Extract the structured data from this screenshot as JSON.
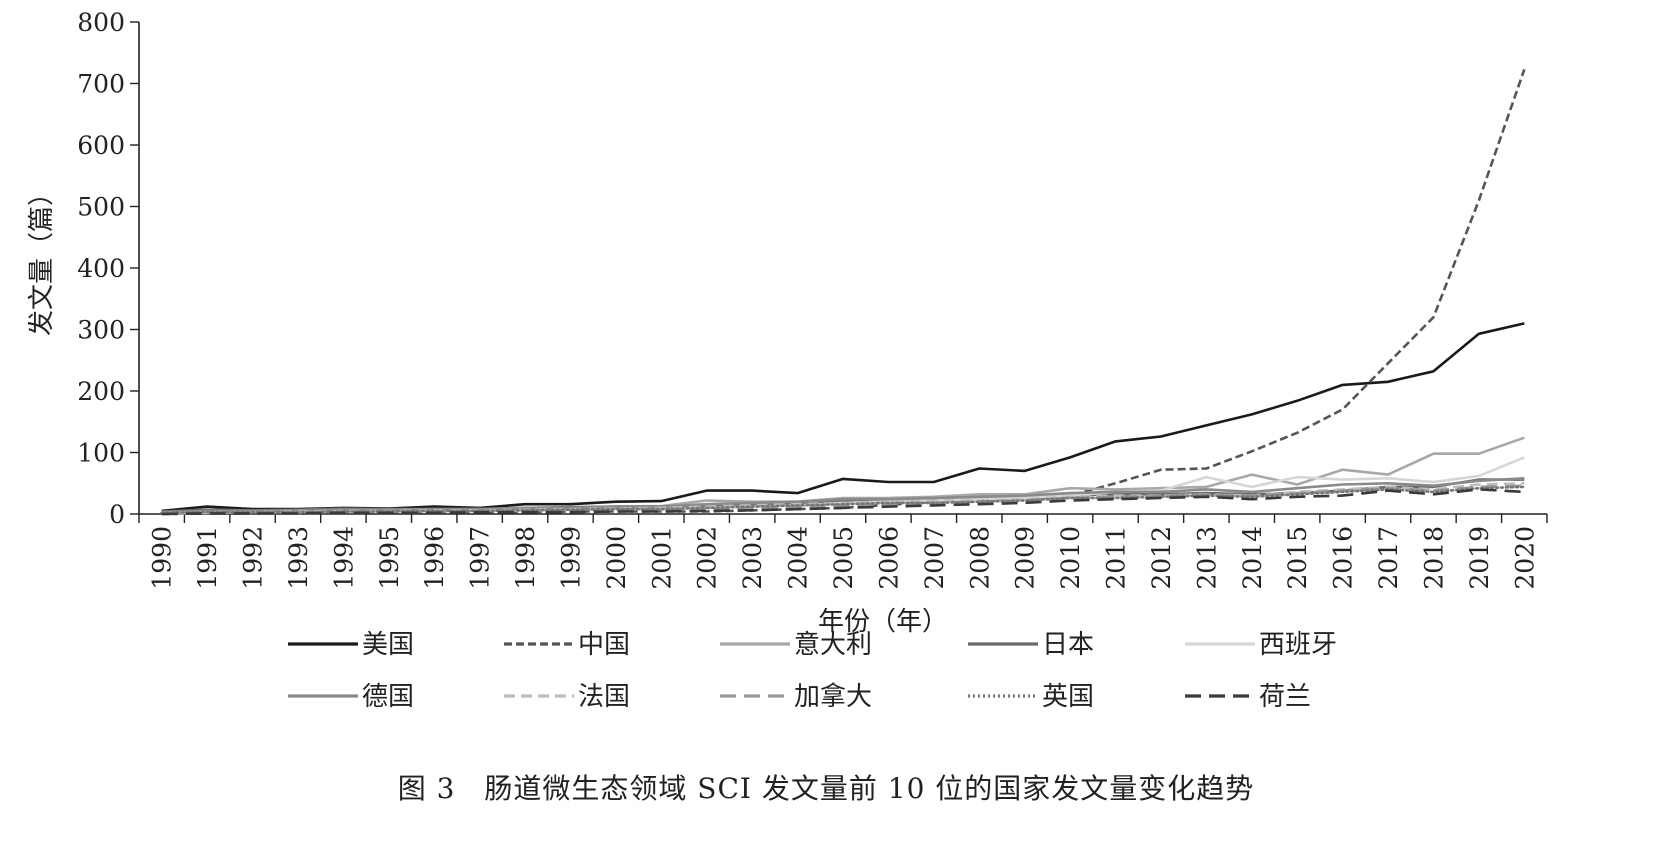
{
  "chart_data": {
    "type": "line",
    "caption": "图 3　肠道微生态领域 SCI 发文量前 10 位的国家发文量变化趋势",
    "xlabel": "年份（年）",
    "ylabel": "发文量（篇）",
    "ylim": [
      0,
      800
    ],
    "yticks": [
      0,
      100,
      200,
      300,
      400,
      500,
      600,
      700,
      800
    ],
    "categories": [
      "1990",
      "1991",
      "1992",
      "1993",
      "1994",
      "1995",
      "1996",
      "1997",
      "1998",
      "1999",
      "2000",
      "2001",
      "2002",
      "2003",
      "2004",
      "2005",
      "2006",
      "2007",
      "2008",
      "2009",
      "2010",
      "2011",
      "2012",
      "2013",
      "2014",
      "2015",
      "2016",
      "2017",
      "2018",
      "2019",
      "2020"
    ],
    "grid": false,
    "legend_position": "bottom",
    "series": [
      {
        "name": "美国",
        "color": "#1a1a1a",
        "dash": "solid",
        "values": [
          5,
          12,
          8,
          8,
          10,
          9,
          12,
          10,
          16,
          16,
          20,
          21,
          38,
          38,
          34,
          57,
          52,
          52,
          74,
          70,
          92,
          118,
          126,
          144,
          162,
          184,
          210,
          215,
          232,
          293,
          310
        ]
      },
      {
        "name": "中国",
        "color": "#555555",
        "dash": "short-dash",
        "values": [
          0,
          1,
          1,
          2,
          2,
          3,
          3,
          3,
          3,
          4,
          4,
          4,
          4,
          6,
          8,
          10,
          15,
          20,
          20,
          24,
          30,
          50,
          72,
          74,
          102,
          132,
          170,
          245,
          320,
          510,
          723
        ]
      },
      {
        "name": "意大利",
        "color": "#a8a8a8",
        "dash": "solid",
        "values": [
          2,
          4,
          4,
          5,
          6,
          6,
          7,
          8,
          9,
          10,
          12,
          13,
          22,
          20,
          20,
          26,
          26,
          28,
          32,
          32,
          42,
          40,
          42,
          44,
          64,
          48,
          72,
          64,
          98,
          98,
          124
        ]
      },
      {
        "name": "日本",
        "color": "#6a6a6a",
        "dash": "solid",
        "values": [
          4,
          7,
          6,
          7,
          9,
          8,
          8,
          8,
          10,
          11,
          12,
          12,
          14,
          16,
          18,
          20,
          22,
          24,
          24,
          26,
          30,
          32,
          32,
          34,
          32,
          34,
          38,
          44,
          44,
          56,
          56
        ]
      },
      {
        "name": "西班牙",
        "color": "#d6d6d6",
        "dash": "solid",
        "values": [
          1,
          2,
          3,
          3,
          4,
          4,
          5,
          5,
          6,
          7,
          8,
          8,
          10,
          12,
          14,
          18,
          20,
          22,
          24,
          26,
          30,
          36,
          38,
          60,
          44,
          60,
          56,
          58,
          52,
          62,
          92
        ]
      },
      {
        "name": "德国",
        "color": "#8a8a8a",
        "dash": "solid",
        "values": [
          3,
          5,
          5,
          6,
          7,
          7,
          8,
          8,
          10,
          10,
          12,
          12,
          16,
          18,
          20,
          24,
          24,
          26,
          28,
          30,
          34,
          36,
          36,
          40,
          36,
          42,
          48,
          50,
          46,
          54,
          58
        ]
      },
      {
        "name": "法国",
        "color": "#bdbdbd",
        "dash": "dash",
        "values": [
          2,
          3,
          3,
          4,
          5,
          5,
          6,
          6,
          7,
          8,
          9,
          10,
          12,
          14,
          16,
          18,
          20,
          22,
          22,
          24,
          28,
          30,
          30,
          32,
          30,
          36,
          40,
          44,
          40,
          48,
          50
        ]
      },
      {
        "name": "加拿大",
        "color": "#9a9a9a",
        "dash": "long-dash",
        "values": [
          1,
          2,
          2,
          3,
          3,
          4,
          4,
          5,
          5,
          6,
          7,
          7,
          8,
          10,
          12,
          14,
          16,
          18,
          20,
          22,
          26,
          28,
          30,
          32,
          30,
          34,
          38,
          42,
          38,
          44,
          46
        ]
      },
      {
        "name": "英国",
        "color": "#777777",
        "dash": "dot",
        "values": [
          2,
          3,
          3,
          3,
          4,
          4,
          5,
          5,
          6,
          7,
          8,
          8,
          10,
          12,
          14,
          16,
          18,
          18,
          20,
          22,
          26,
          26,
          28,
          30,
          28,
          32,
          36,
          40,
          36,
          42,
          44
        ]
      },
      {
        "name": "荷兰",
        "color": "#3a3a3a",
        "dash": "long-dash",
        "values": [
          0,
          1,
          1,
          1,
          2,
          2,
          2,
          3,
          3,
          3,
          4,
          4,
          5,
          6,
          8,
          10,
          12,
          14,
          16,
          18,
          22,
          24,
          26,
          28,
          24,
          28,
          30,
          38,
          32,
          40,
          36
        ]
      }
    ]
  }
}
